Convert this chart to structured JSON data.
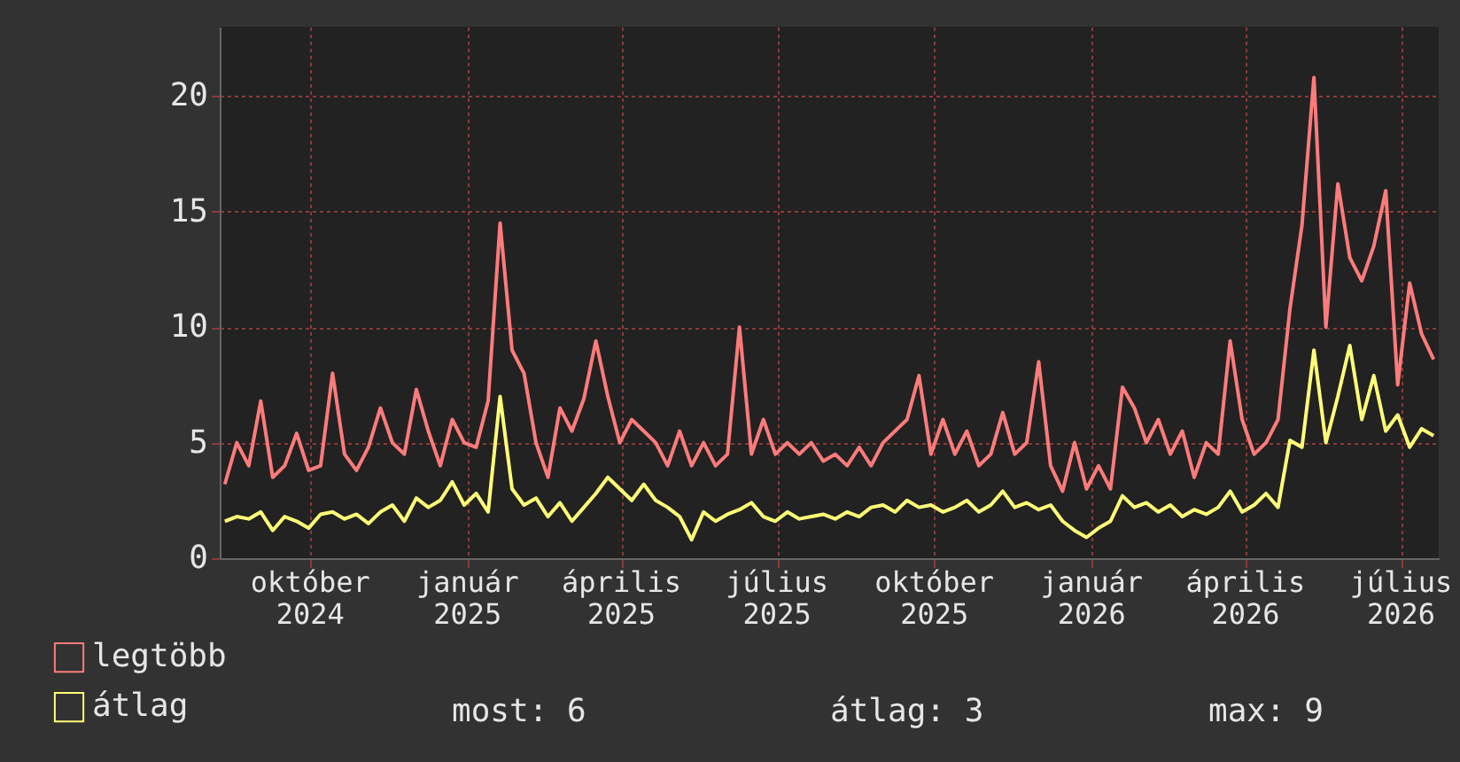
{
  "chart_data": {
    "type": "line",
    "x": [
      "2024-08-12",
      "2024-08-19",
      "2024-08-26",
      "2024-09-02",
      "2024-09-09",
      "2024-09-16",
      "2024-09-23",
      "2024-09-30",
      "2024-10-07",
      "2024-10-14",
      "2024-10-21",
      "2024-10-28",
      "2024-11-04",
      "2024-11-11",
      "2024-11-18",
      "2024-11-25",
      "2024-12-02",
      "2024-12-09",
      "2024-12-16",
      "2024-12-23",
      "2024-12-30",
      "2025-01-06",
      "2025-01-13",
      "2025-01-20",
      "2025-01-27",
      "2025-02-03",
      "2025-02-10",
      "2025-02-17",
      "2025-02-24",
      "2025-03-03",
      "2025-03-10",
      "2025-03-17",
      "2025-03-24",
      "2025-03-31",
      "2025-04-07",
      "2025-04-14",
      "2025-04-21",
      "2025-04-28",
      "2025-05-05",
      "2025-05-12",
      "2025-05-19",
      "2025-05-26",
      "2025-06-02",
      "2025-06-09",
      "2025-06-16",
      "2025-06-23",
      "2025-06-30",
      "2025-07-07",
      "2025-07-14",
      "2025-07-21",
      "2025-07-28",
      "2025-08-04",
      "2025-08-11",
      "2025-08-18",
      "2025-08-25",
      "2025-09-01",
      "2025-09-08",
      "2025-09-15",
      "2025-09-22",
      "2025-09-29",
      "2025-10-06",
      "2025-10-13",
      "2025-10-20",
      "2025-10-27",
      "2025-11-03",
      "2025-11-10",
      "2025-11-17",
      "2025-11-24",
      "2025-12-01",
      "2025-12-08",
      "2025-12-15",
      "2025-12-22",
      "2025-12-29",
      "2026-01-05",
      "2026-01-12",
      "2026-01-19",
      "2026-01-26",
      "2026-02-02",
      "2026-02-09",
      "2026-02-16",
      "2026-02-23",
      "2026-03-02",
      "2026-03-09",
      "2026-03-16",
      "2026-03-23",
      "2026-03-30",
      "2026-04-06",
      "2026-04-13",
      "2026-04-20",
      "2026-04-27",
      "2026-05-04",
      "2026-05-11",
      "2026-05-18",
      "2026-05-25",
      "2026-06-01",
      "2026-06-08",
      "2026-06-15",
      "2026-06-22",
      "2026-06-29",
      "2026-07-06",
      "2026-07-13",
      "2026-07-20"
    ],
    "series": [
      {
        "name": "legtöbb",
        "color": "#ff7b7b",
        "values": [
          3.2,
          5.0,
          4.0,
          6.8,
          3.5,
          4.0,
          5.4,
          3.8,
          4.0,
          8.0,
          4.5,
          3.8,
          4.8,
          6.5,
          5.0,
          4.5,
          7.3,
          5.5,
          4.0,
          6.0,
          5.0,
          4.8,
          6.8,
          14.5,
          9.0,
          8.0,
          5.0,
          3.5,
          6.5,
          5.5,
          6.9,
          9.4,
          7.0,
          5.0,
          6.0,
          5.5,
          5.0,
          4.0,
          5.5,
          4.0,
          5.0,
          4.0,
          4.5,
          10.0,
          4.5,
          6.0,
          4.5,
          5.0,
          4.5,
          5.0,
          4.2,
          4.5,
          4.0,
          4.8,
          4.0,
          5.0,
          5.5,
          6.0,
          7.9,
          4.5,
          6.0,
          4.5,
          5.5,
          4.0,
          4.5,
          6.3,
          4.5,
          5.0,
          8.5,
          4.0,
          2.9,
          5.0,
          3.0,
          4.0,
          3.0,
          7.4,
          6.5,
          5.0,
          6.0,
          4.5,
          5.5,
          3.5,
          5.0,
          4.5,
          9.4,
          6.0,
          4.5,
          5.0,
          6.0,
          10.8,
          14.4,
          20.8,
          10.0,
          16.2,
          13.0,
          12.0,
          13.5,
          15.9,
          7.5,
          11.9,
          9.7,
          8.6
        ]
      },
      {
        "name": "átlag",
        "color": "#ffff77",
        "values": [
          1.6,
          1.8,
          1.7,
          2.0,
          1.2,
          1.8,
          1.6,
          1.3,
          1.9,
          2.0,
          1.7,
          1.9,
          1.5,
          2.0,
          2.3,
          1.6,
          2.6,
          2.2,
          2.5,
          3.3,
          2.3,
          2.8,
          2.0,
          7.0,
          3.0,
          2.3,
          2.6,
          1.8,
          2.4,
          1.6,
          2.2,
          2.8,
          3.5,
          3.0,
          2.5,
          3.2,
          2.5,
          2.2,
          1.8,
          0.8,
          2.0,
          1.6,
          1.9,
          2.1,
          2.4,
          1.8,
          1.6,
          2.0,
          1.7,
          1.8,
          1.9,
          1.7,
          2.0,
          1.8,
          2.2,
          2.3,
          2.0,
          2.5,
          2.2,
          2.3,
          2.0,
          2.2,
          2.5,
          2.0,
          2.3,
          2.9,
          2.2,
          2.4,
          2.1,
          2.3,
          1.6,
          1.2,
          0.9,
          1.3,
          1.6,
          2.7,
          2.2,
          2.4,
          2.0,
          2.3,
          1.8,
          2.1,
          1.9,
          2.2,
          2.9,
          2.0,
          2.3,
          2.8,
          2.2,
          5.1,
          4.8,
          9.0,
          5.0,
          7.0,
          9.2,
          6.0,
          7.9,
          5.5,
          6.2,
          4.8,
          5.6,
          5.3
        ]
      }
    ],
    "xlim": [
      "2024-08-09",
      "2026-07-23"
    ],
    "xticks": [
      {
        "value": "2024-10-01",
        "label": "október 2024"
      },
      {
        "value": "2025-01-01",
        "label": "január 2025"
      },
      {
        "value": "2025-04-01",
        "label": "április 2025"
      },
      {
        "value": "2025-07-01",
        "label": "július 2025"
      },
      {
        "value": "2025-10-01",
        "label": "október 2025"
      },
      {
        "value": "2026-01-01",
        "label": "január 2026"
      },
      {
        "value": "2026-04-01",
        "label": "április 2026"
      },
      {
        "value": "2026-07-01",
        "label": "július 2026"
      }
    ],
    "ylim": [
      0,
      23
    ],
    "yticks": [
      0,
      5,
      10,
      15,
      20
    ],
    "grid": true,
    "legend": "bottom left",
    "marker": "none",
    "line_style": "solid",
    "annotations": [
      "most: 6",
      "átlag: 3",
      "max: 9"
    ]
  }
}
